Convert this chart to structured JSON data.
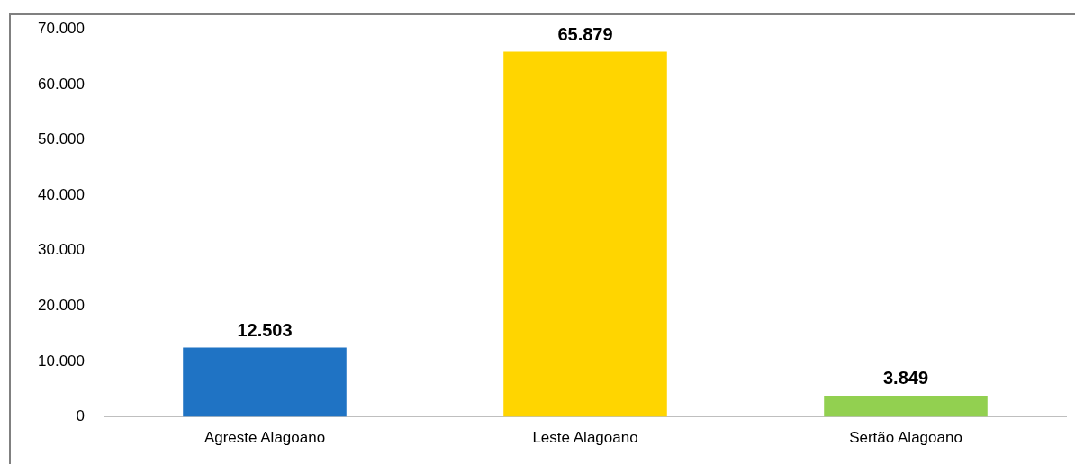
{
  "chart_data": {
    "type": "bar",
    "categories": [
      "Agreste Alagoano",
      "Leste Alagoano",
      "Sertão Alagoano"
    ],
    "values": [
      12503,
      65879,
      3849
    ],
    "colors": [
      "#1f73c4",
      "#ffd500",
      "#92d050"
    ],
    "value_labels": [
      "12.503",
      "65.879",
      "3.849"
    ],
    "ylim": [
      0,
      70000
    ],
    "yticks": [
      {
        "value": 0,
        "label": "0"
      },
      {
        "value": 10000,
        "label": "10.000"
      },
      {
        "value": 20000,
        "label": "20.000"
      },
      {
        "value": 30000,
        "label": "30.000"
      },
      {
        "value": 40000,
        "label": "40.000"
      },
      {
        "value": 50000,
        "label": "50.000"
      },
      {
        "value": 60000,
        "label": "60.000"
      },
      {
        "value": 70000,
        "label": "70.000"
      }
    ],
    "grid": false,
    "legend": false
  }
}
